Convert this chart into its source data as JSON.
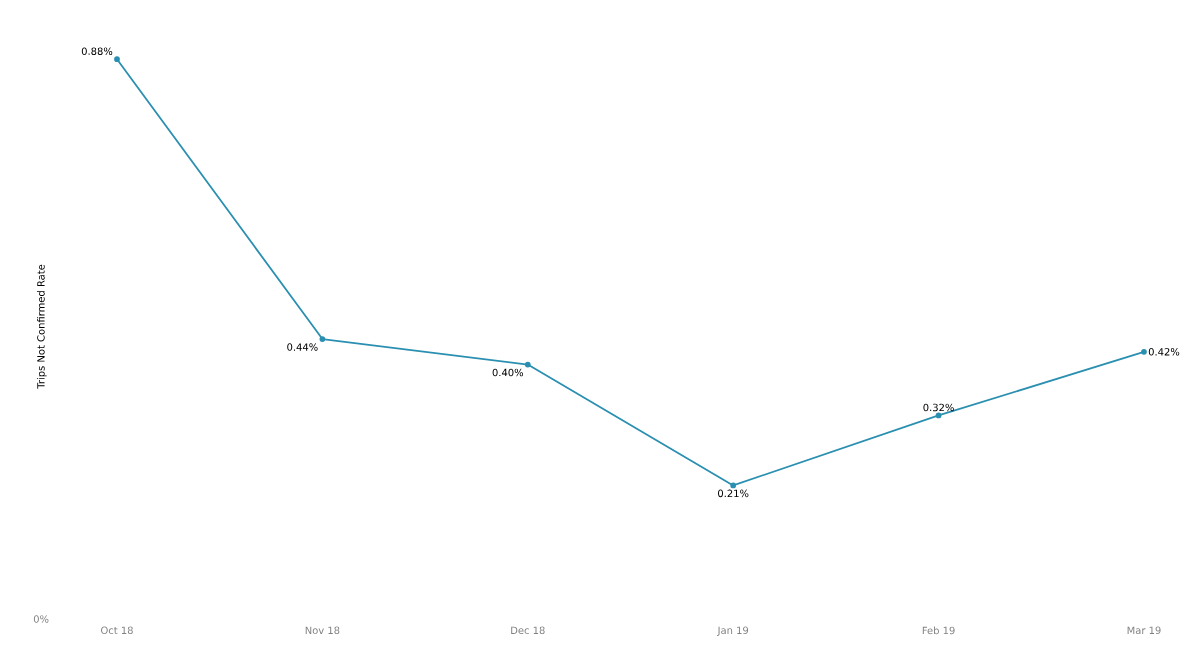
{
  "chart_data": {
    "type": "line",
    "ylabel": "Trips Not Confirmed Rate",
    "categories": [
      "Oct 18",
      "Nov 18",
      "Dec 18",
      "Jan 19",
      "Feb 19",
      "Mar 19"
    ],
    "values": [
      0.88,
      0.44,
      0.4,
      0.21,
      0.32,
      0.42
    ],
    "value_labels": [
      "0.88%",
      "0.44%",
      "0.40%",
      "0.21%",
      "0.32%",
      "0.42%"
    ],
    "color": "#2a8fb0",
    "marker": "circle",
    "grid": false,
    "annotations": [
      "0%"
    ]
  }
}
